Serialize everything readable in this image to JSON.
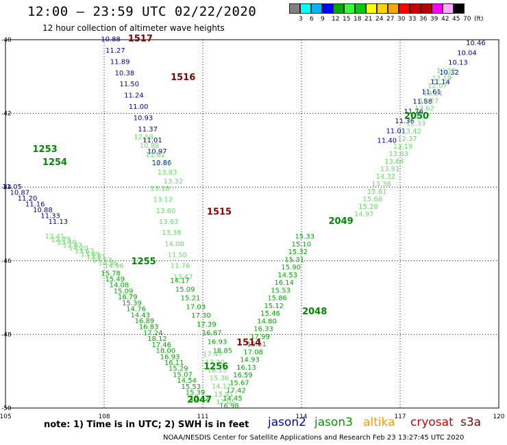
{
  "header": {
    "title": "12:00 — 23:59 UTC 02/22/2020",
    "subtitle": "12 hour collection of altimeter wave heights"
  },
  "legend": {
    "colors": [
      "#808080",
      "#00ffff",
      "#00b4ff",
      "#0000ff",
      "#00aa00",
      "#33ff33",
      "#00cc00",
      "#ffff00",
      "#ffd400",
      "#ffa500",
      "#ff0000",
      "#cc0000",
      "#b40000",
      "#ff00ff",
      "#ffaaff",
      "#000000"
    ],
    "labels": [
      "3",
      "6",
      "9",
      "12",
      "15",
      "18",
      "21",
      "24",
      "27",
      "30",
      "33",
      "36",
      "39",
      "42",
      "45",
      "70",
      "(ft)"
    ]
  },
  "note": "note: 1) Time is in UTC; 2) SWH is in feet",
  "satellites": [
    {
      "name": "jason2",
      "color": "#0000cc"
    },
    {
      "name": "jason3",
      "color": "#009900"
    },
    {
      "name": "altika",
      "color": "#ff9900"
    },
    {
      "name": "cryosat",
      "color": "#cc0000"
    },
    {
      "name": "s3a",
      "color": "#800000"
    }
  ],
  "footer": "NOAA/NESDIS Center for Satellite Applications and Research   Feb 23 13:27:45 UTC 2020",
  "chart_data": {
    "type": "scatter",
    "xlabel": "",
    "ylabel": "",
    "xlim": [
      105,
      120
    ],
    "ylim": [
      -50,
      -40
    ],
    "x_ticks": [
      105,
      108,
      111,
      114,
      117,
      120
    ],
    "y_ticks": [
      -40,
      -42,
      -44,
      -46,
      -48,
      -50
    ],
    "grid": true,
    "tracks": [
      {
        "satellite": "jason2",
        "color": "#0000aa",
        "start": [
          108.2,
          -40.05
        ],
        "end": [
          109.75,
          -43.4
        ],
        "values": [
          "10.88",
          "11.27",
          "11.89",
          "10.38",
          "11.50",
          "11.24",
          "11.00",
          "10.93",
          "11.37",
          "11.01",
          "10.97",
          "10.86"
        ]
      },
      {
        "satellite": "jason3",
        "color": "#66dd66",
        "start": [
          109.2,
          -42.7
        ],
        "end": [
          110.1,
          -43.9
        ],
        "values": [
          "12.58",
          "10.88",
          "11.62",
          "12.79",
          "13.83",
          "13.32"
        ]
      },
      {
        "satellite": "jason3",
        "color": "#66dd66",
        "start": [
          109.7,
          -44.1
        ],
        "end": [
          110.4,
          -46.5
        ],
        "values": [
          "13.18",
          "13.12",
          "13.60",
          "13.63",
          "13.38",
          "14.08",
          "11.50",
          "11.76",
          "13.47"
        ]
      },
      {
        "satellite": "jason3",
        "color": "#00aa00",
        "start": [
          110.3,
          -46.6
        ],
        "end": [
          111.6,
          -48.5
        ],
        "values": [
          "14.17",
          "15.09",
          "15.21",
          "17.03",
          "17.30",
          "17.39",
          "16.87",
          "16.93",
          "18.85"
        ]
      },
      {
        "satellite": "jason2",
        "color": "#0000aa",
        "start": [
          105.2,
          -44.05
        ],
        "end": [
          106.6,
          -45.0
        ],
        "values": [
          "11.05",
          "10.87",
          "11.20",
          "11.16",
          "10.88",
          "11.33",
          "11.13"
        ]
      },
      {
        "satellite": "jason3",
        "color": "#66dd66",
        "start": [
          106.5,
          -45.4
        ],
        "end": [
          108.3,
          -46.2
        ],
        "values": [
          "12.41",
          "12.79",
          "13.40",
          "12.82",
          "14.20",
          "13.63",
          "13.89",
          "12.81",
          "14.13",
          "14.36",
          "14.96"
        ]
      },
      {
        "satellite": "jason3",
        "color": "#00aa00",
        "start": [
          108.2,
          -46.4
        ],
        "end": [
          110.9,
          -49.8
        ],
        "values": [
          "15.78",
          "15.49",
          "14.08",
          "15.09",
          "16.79",
          "15.39",
          "14.76",
          "14.43",
          "16.89",
          "16.83",
          "17.24",
          "18.12",
          "17.46",
          "18.00",
          "16.93",
          "16.11",
          "15.29",
          "15.07",
          "14.54",
          "15.53",
          "15.39",
          "15.42"
        ]
      },
      {
        "satellite": "jason2",
        "color": "#0000aa",
        "start": [
          119.3,
          -40.15
        ],
        "end": [
          116.6,
          -42.8
        ],
        "values": [
          "10.46",
          "10.04",
          "10.13",
          "10.32",
          "11.14",
          "11.61",
          "11.88",
          "11.76",
          "11.36",
          "11.01",
          "11.40"
        ]
      },
      {
        "satellite": "jason3",
        "color": "#66dd66",
        "start": [
          118.4,
          -40.9
        ],
        "end": [
          115.9,
          -44.8
        ],
        "values": [
          "12.12",
          "12.19",
          "12.07",
          "12.21",
          "12.27",
          "12.62",
          "13.37",
          "12.33",
          "13.42",
          "12.37",
          "13.19",
          "13.83",
          "13.64",
          "13.91",
          "14.32",
          "13.38",
          "15.61",
          "15.68",
          "15.28",
          "14.97"
        ]
      },
      {
        "satellite": "jason3",
        "color": "#00aa00",
        "start": [
          114.1,
          -45.4
        ],
        "end": [
          111.8,
          -50.0
        ],
        "values": [
          "15.33",
          "15.10",
          "15.32",
          "15.31",
          "15.90",
          "14.53",
          "16.14",
          "15.53",
          "15.86",
          "15.12",
          "15.46",
          "14.80",
          "16.33",
          "17.99",
          "16.51",
          "17.08",
          "14.93",
          "16.13",
          "16.59",
          "15.67",
          "17.42",
          "14.45",
          "16.98"
        ]
      },
      {
        "satellite": "jason3",
        "color": "#66dd66",
        "start": [
          111.3,
          -48.6
        ],
        "end": [
          111.7,
          -49.9
        ],
        "values": [
          "17.47",
          "17.20",
          "16.15",
          "15.36",
          "14.12",
          "15.91",
          "17.05"
        ]
      }
    ],
    "labels": [
      {
        "text": "1517",
        "x": 109.1,
        "y": -40.05,
        "color": "#800000"
      },
      {
        "text": "1516",
        "x": 110.4,
        "y": -41.1,
        "color": "#800000"
      },
      {
        "text": "1253",
        "x": 106.2,
        "y": -43.05,
        "color": "#008800"
      },
      {
        "text": "1254",
        "x": 106.5,
        "y": -43.4,
        "color": "#008800"
      },
      {
        "text": "1515",
        "x": 111.5,
        "y": -44.75,
        "color": "#800000"
      },
      {
        "text": "1255",
        "x": 109.2,
        "y": -46.1,
        "color": "#008800"
      },
      {
        "text": "2050",
        "x": 117.5,
        "y": -42.15,
        "color": "#008800"
      },
      {
        "text": "2049",
        "x": 115.2,
        "y": -45.0,
        "color": "#008800"
      },
      {
        "text": "2048",
        "x": 114.4,
        "y": -47.45,
        "color": "#008800"
      },
      {
        "text": "1514",
        "x": 112.4,
        "y": -48.3,
        "color": "#800000"
      },
      {
        "text": "1256",
        "x": 111.4,
        "y": -48.95,
        "color": "#008800"
      },
      {
        "text": "2047",
        "x": 110.9,
        "y": -49.85,
        "color": "#008800"
      }
    ]
  }
}
